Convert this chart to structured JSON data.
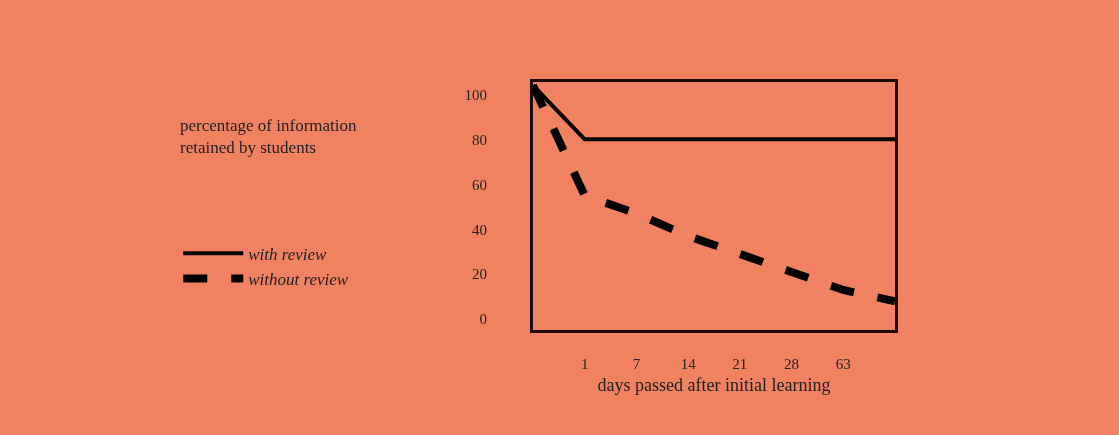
{
  "chart_data": {
    "type": "line",
    "annotations": [
      "percentage of information retained by students"
    ],
    "xlabel": "days passed after initial learning",
    "categories": [
      null,
      "1",
      "7",
      "14",
      "21",
      "28",
      "63",
      null
    ],
    "series": [
      {
        "name": "with review",
        "color": "#000000",
        "line_style": "solid",
        "values": [
          104,
          80,
          80,
          80,
          80,
          80,
          80,
          80
        ]
      },
      {
        "name": "without review",
        "color": "#000000",
        "line_style": "dashed",
        "values": [
          104,
          55,
          47,
          37,
          29,
          21,
          13,
          8
        ]
      }
    ],
    "ylim": [
      -4.8,
      105.5
    ],
    "yticks": [
      0,
      20,
      40,
      60,
      80,
      100
    ],
    "grid": false,
    "legend": "left",
    "marker": "none"
  }
}
